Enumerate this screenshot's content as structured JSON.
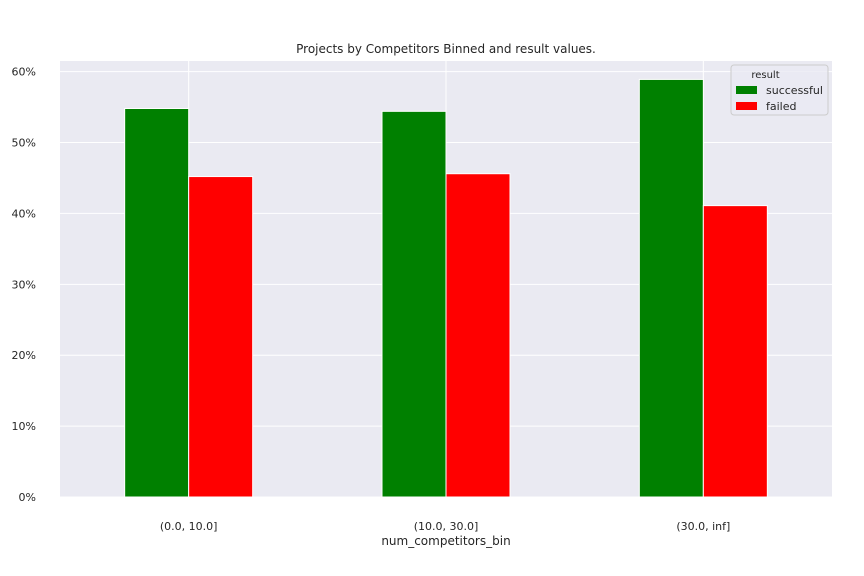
{
  "chart_data": {
    "type": "bar",
    "title": "Projects by Competitors Binned and result values.",
    "xlabel": "num_competitors_bin",
    "ylabel": "",
    "categories": [
      "(0.0, 10.0]",
      "(10.0, 30.0]",
      "(30.0, inf]"
    ],
    "series": [
      {
        "name": "successful",
        "color": "#008000",
        "values": [
          54.8,
          54.4,
          58.9
        ]
      },
      {
        "name": "failed",
        "color": "#ff0000",
        "values": [
          45.2,
          45.6,
          41.1
        ]
      }
    ],
    "ylim": [
      0,
      61.5
    ],
    "yticks": [
      0,
      10,
      20,
      30,
      40,
      50,
      60
    ],
    "ytick_labels": [
      "0%",
      "10%",
      "20%",
      "30%",
      "40%",
      "50%",
      "60%"
    ],
    "grid": true,
    "legend": {
      "title": "result",
      "placement": "top-right"
    },
    "background": "#eaeaf2"
  }
}
